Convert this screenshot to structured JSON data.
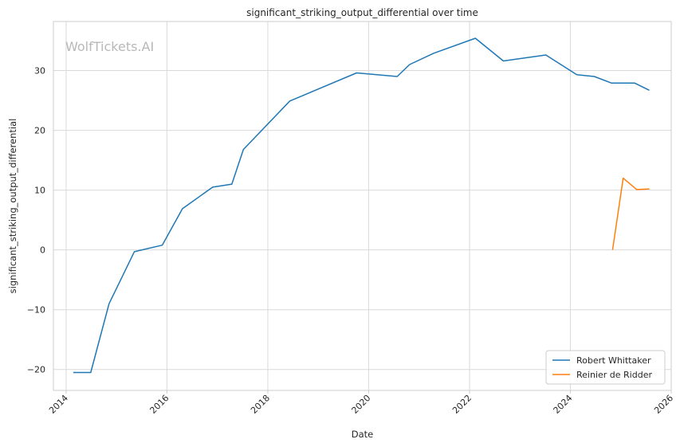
{
  "chart_data": {
    "type": "line",
    "title": "significant_striking_output_differential over time",
    "xlabel": "Date",
    "ylabel": "significant_striking_output_differential",
    "watermark": "WolfTickets.AI",
    "xlim": [
      "2013-10-01",
      "2026-01-01"
    ],
    "ylim": [
      -23.5,
      38.2
    ],
    "x_ticks": [
      "2014-01-01",
      "2016-01-01",
      "2018-01-01",
      "2020-01-01",
      "2022-01-01",
      "2024-01-01",
      "2026-01-01"
    ],
    "x_tick_labels": [
      "2014",
      "2016",
      "2018",
      "2020",
      "2022",
      "2024",
      "2026"
    ],
    "y_ticks": [
      -20,
      -10,
      0,
      10,
      20,
      30
    ],
    "y_tick_labels": [
      "−20",
      "−10",
      "0",
      "10",
      "20",
      "30"
    ],
    "grid": true,
    "legend_position": "bottom-right",
    "series": [
      {
        "name": "Robert Whittaker",
        "color": "#1f77b4",
        "points": [
          [
            "2014-02-22",
            -20.5
          ],
          [
            "2014-06-28",
            -20.5
          ],
          [
            "2014-11-08",
            -9.0
          ],
          [
            "2015-05-10",
            -0.3
          ],
          [
            "2015-11-28",
            0.8
          ],
          [
            "2016-04-23",
            6.9
          ],
          [
            "2016-11-27",
            10.5
          ],
          [
            "2017-04-15",
            11.0
          ],
          [
            "2017-07-08",
            16.8
          ],
          [
            "2018-06-09",
            24.9
          ],
          [
            "2019-10-06",
            29.6
          ],
          [
            "2020-07-26",
            29.0
          ],
          [
            "2020-10-24",
            31.0
          ],
          [
            "2021-04-17",
            32.9
          ],
          [
            "2022-02-12",
            35.4
          ],
          [
            "2022-09-03",
            31.6
          ],
          [
            "2023-07-08",
            32.6
          ],
          [
            "2024-02-17",
            29.3
          ],
          [
            "2024-06-22",
            29.0
          ],
          [
            "2024-10-26",
            27.9
          ],
          [
            "2025-04-12",
            27.9
          ],
          [
            "2025-07-26",
            26.7
          ]
        ]
      },
      {
        "name": "Reinier de Ridder",
        "color": "#ff7f0e",
        "points": [
          [
            "2024-11-02",
            0.0
          ],
          [
            "2025-01-18",
            12.0
          ],
          [
            "2025-04-26",
            10.1
          ],
          [
            "2025-07-26",
            10.2
          ]
        ]
      }
    ]
  }
}
